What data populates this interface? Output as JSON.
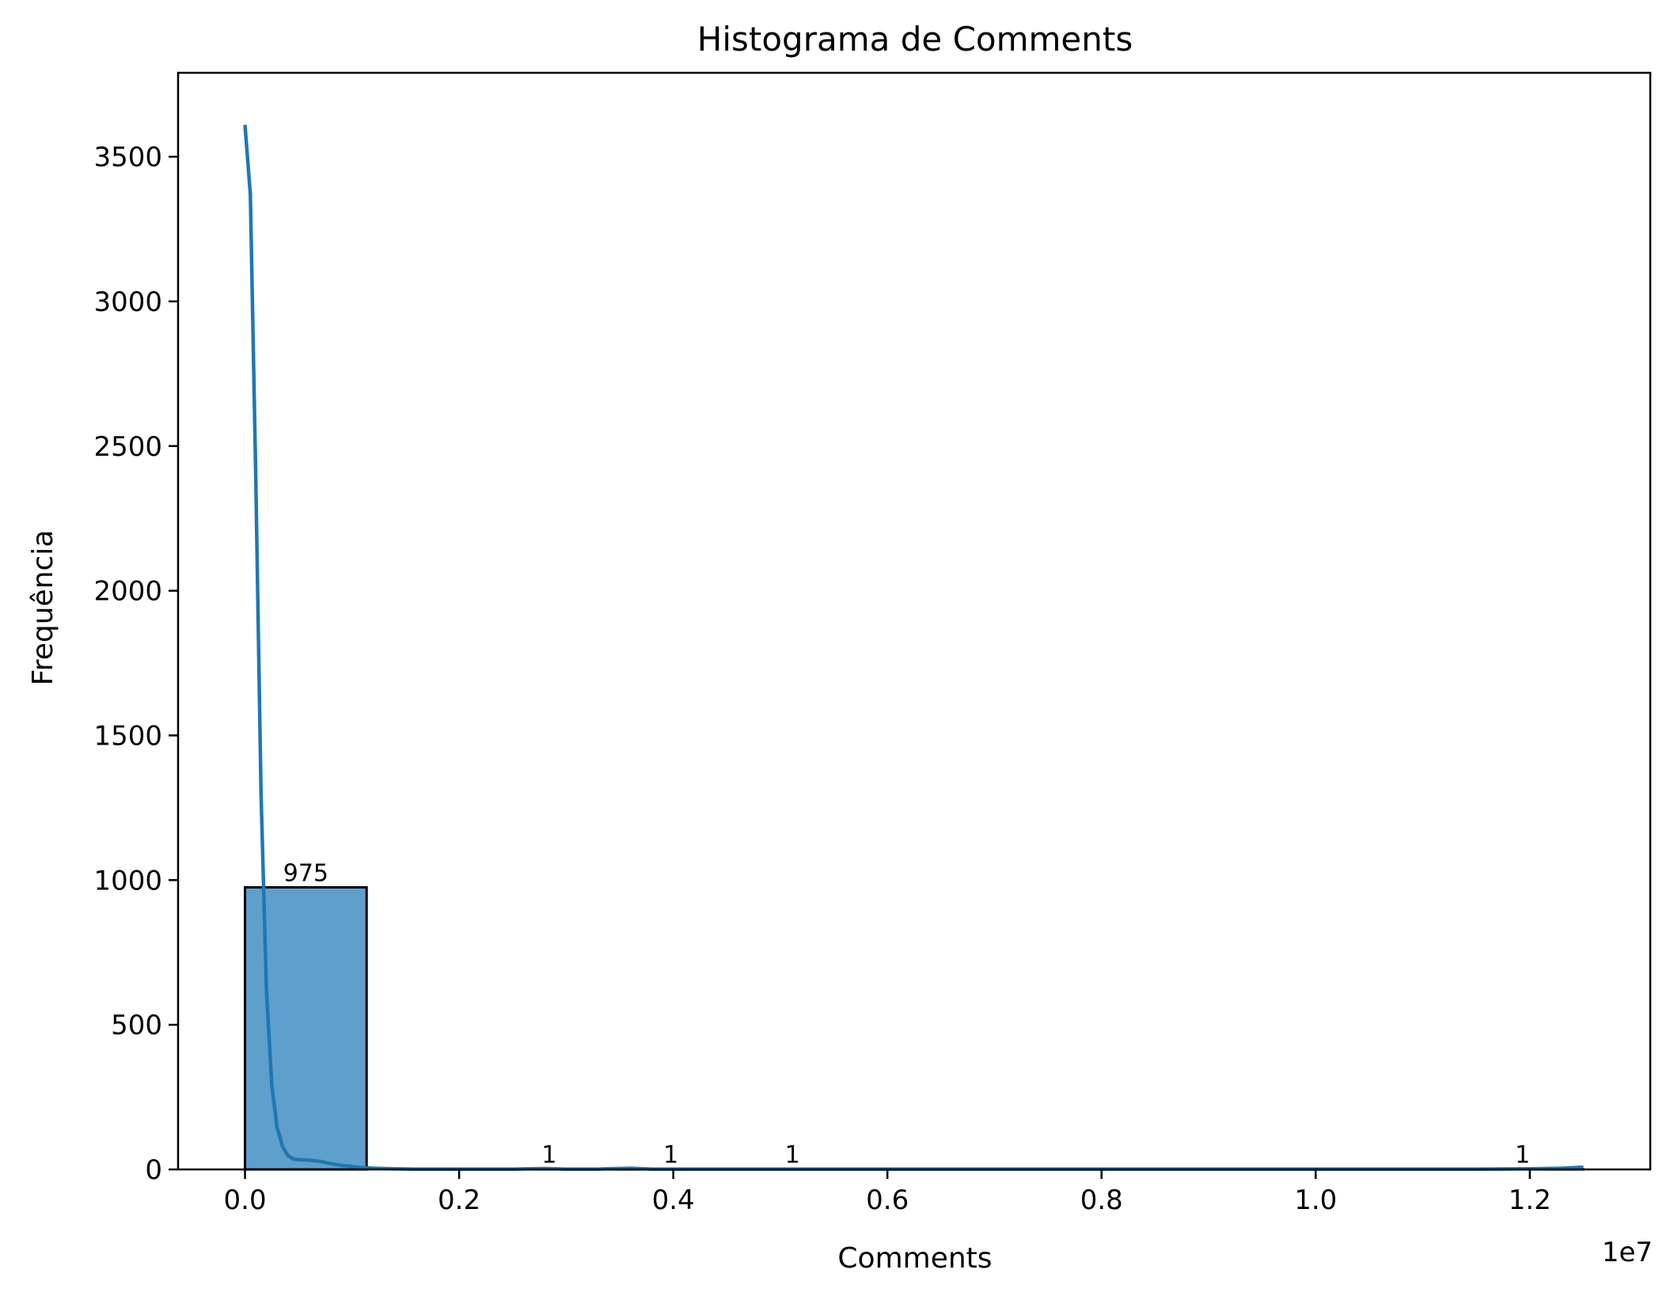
{
  "chart_data": {
    "type": "bar",
    "title": "Histograma de Comments",
    "xlabel": "Comments",
    "ylabel": "Frequência",
    "x_offset_label": "1e7",
    "xlim": [
      -0.0625,
      1.3125
    ],
    "ylim": [
      0,
      3790
    ],
    "x_ticks": [
      0.0,
      0.2,
      0.4,
      0.6,
      0.8,
      1.0,
      1.2
    ],
    "x_tick_labels": [
      "0.0",
      "0.2",
      "0.4",
      "0.6",
      "0.8",
      "1.0",
      "1.2"
    ],
    "y_ticks": [
      0,
      500,
      1000,
      1500,
      2000,
      2500,
      3000,
      3500
    ],
    "y_tick_labels": [
      "0",
      "500",
      "1000",
      "1500",
      "2000",
      "2500",
      "3000",
      "3500"
    ],
    "bin_width": 0.1136,
    "bins": [
      {
        "start": 0.0,
        "count": 975,
        "label": "975"
      },
      {
        "start": 0.1136,
        "count": 0,
        "label": ""
      },
      {
        "start": 0.2273,
        "count": 1,
        "label": "1"
      },
      {
        "start": 0.3409,
        "count": 1,
        "label": "1"
      },
      {
        "start": 0.4545,
        "count": 1,
        "label": "1"
      },
      {
        "start": 0.5682,
        "count": 0,
        "label": ""
      },
      {
        "start": 0.6818,
        "count": 0,
        "label": ""
      },
      {
        "start": 0.7955,
        "count": 0,
        "label": ""
      },
      {
        "start": 0.9091,
        "count": 0,
        "label": ""
      },
      {
        "start": 1.0227,
        "count": 0,
        "label": ""
      },
      {
        "start": 1.1364,
        "count": 1,
        "label": "1"
      }
    ],
    "kde": {
      "x": [
        0.0,
        0.005,
        0.01,
        0.015,
        0.02,
        0.025,
        0.03,
        0.035,
        0.04,
        0.045,
        0.05,
        0.055,
        0.06,
        0.07,
        0.08,
        0.09,
        0.1,
        0.11,
        0.12,
        0.14,
        0.16,
        0.2,
        0.25,
        0.28,
        0.3,
        0.33,
        0.36,
        0.38,
        0.42,
        0.5,
        0.6,
        0.8,
        1.0,
        1.1,
        1.15,
        1.2,
        1.23,
        1.25
      ],
      "y": [
        3610,
        3370,
        2400,
        1300,
        620,
        290,
        145,
        80,
        48,
        36,
        34,
        33,
        32,
        28,
        20,
        14,
        10,
        6,
        4,
        2,
        1,
        1,
        1,
        3,
        1,
        1,
        4,
        1,
        1,
        1,
        1,
        1,
        1,
        1,
        1,
        2,
        4,
        8
      ]
    },
    "colors": {
      "bar_fill": "#5f9fcc",
      "bar_edge": "#000000",
      "kde_line": "#1f77b4"
    },
    "grid": false
  }
}
